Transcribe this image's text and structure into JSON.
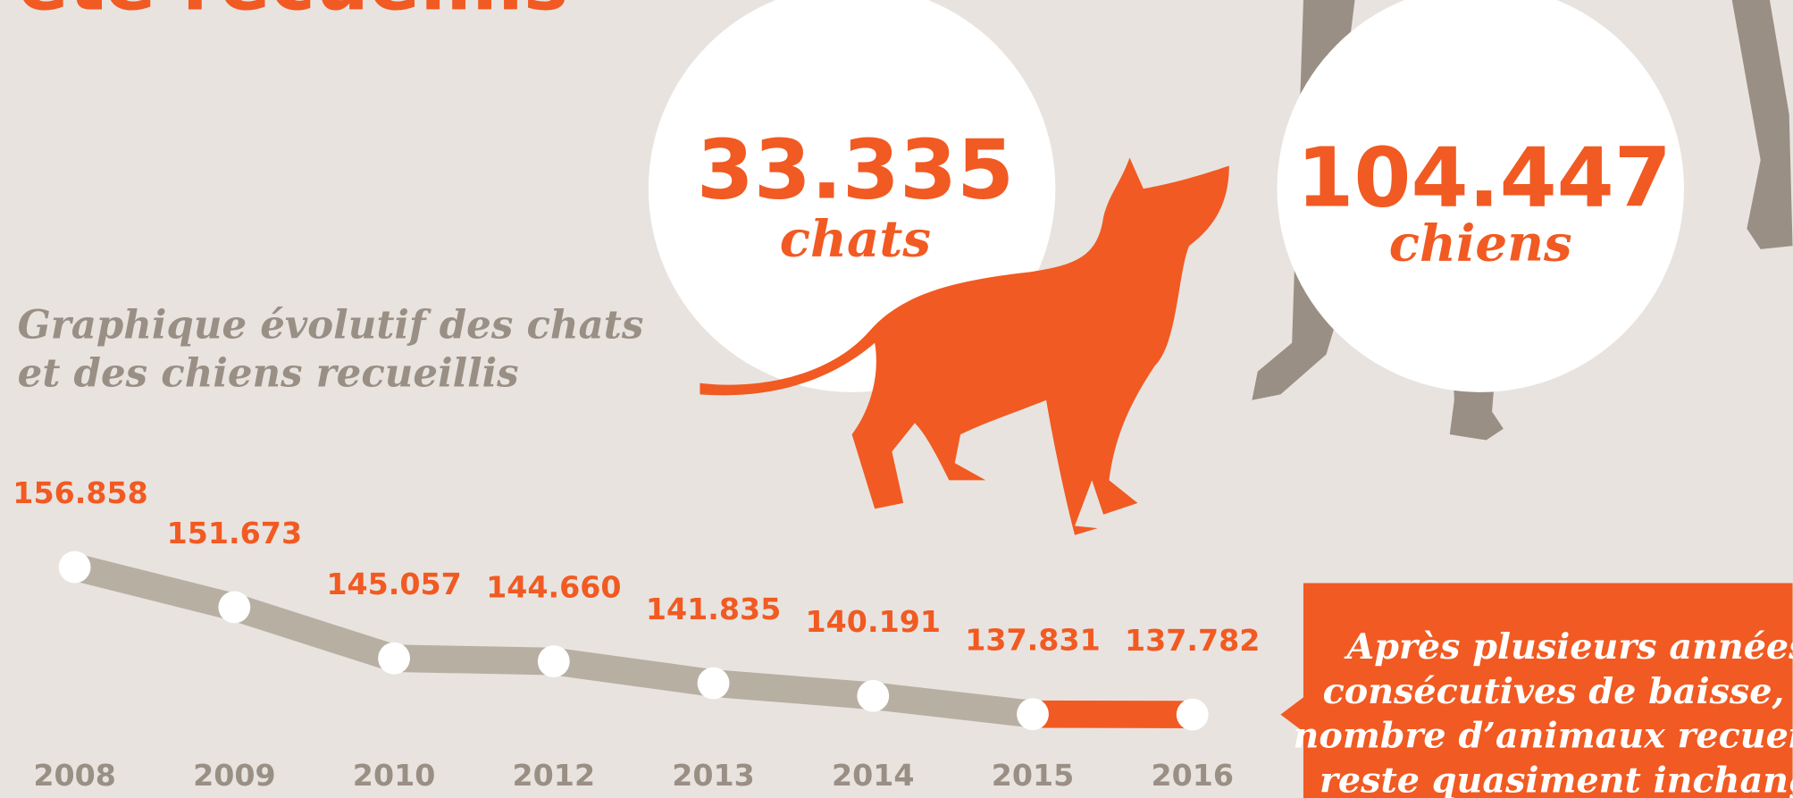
{
  "chart_data": {
    "type": "line",
    "title": "été recueillis",
    "subtitle_lines": [
      "Graphique évolutif des chats",
      "et des chiens recueillis"
    ],
    "stats": [
      {
        "value": "33.335",
        "label": "chats"
      },
      {
        "value": "104.447",
        "label": "chiens"
      }
    ],
    "categories": [
      "2008",
      "2009",
      "2010",
      "2012",
      "2013",
      "2014",
      "2015",
      "2016"
    ],
    "values": [
      156858,
      151673,
      145057,
      144660,
      141835,
      140191,
      137831,
      137782
    ],
    "value_labels": [
      "156.858",
      "151.673",
      "145.057",
      "144.660",
      "141.835",
      "140.191",
      "137.831",
      "137.782"
    ],
    "color": "#b8afa3",
    "recent_color": "#f15a22",
    "callout_lines": [
      "Après plusieurs années",
      "consécutives de baisse, le",
      "nombre d’animaux recueillis",
      "reste quasiment inchangé"
    ]
  }
}
